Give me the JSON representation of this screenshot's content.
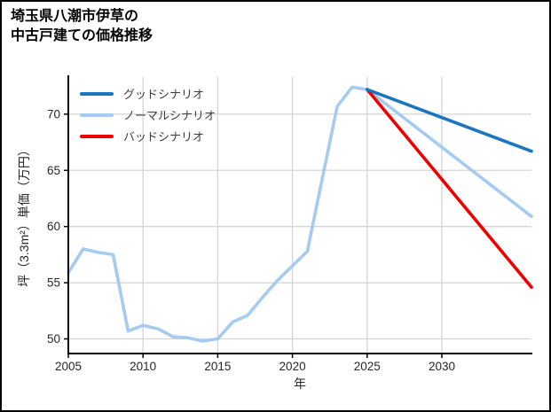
{
  "header": {
    "title_line1": "埼玉県八潮市伊草の",
    "title_line2": "中古戸建ての価格推移"
  },
  "chart_data": {
    "type": "line",
    "title": "埼玉県八潮市伊草の中古戸建ての価格推移",
    "xlabel": "年",
    "ylabel": "坪（3.3m²）単価（万円）",
    "xlim": [
      2005,
      2036
    ],
    "ylim": [
      48.7,
      73.3
    ],
    "xticks": [
      2005,
      2010,
      2015,
      2020,
      2025,
      2030
    ],
    "yticks": [
      50,
      55,
      60,
      65,
      70
    ],
    "grid": true,
    "grid_color": "#d4d4d4",
    "spine_color": "#000000",
    "tick_label_color": "#262626",
    "legend_position": "upper-left",
    "series": [
      {
        "name": "グッドシナリオ",
        "key": "good-scenario",
        "color": "#1a75c2",
        "x": [
          2025,
          2036
        ],
        "y": [
          72.2,
          66.7
        ]
      },
      {
        "name": "ノーマルシナリオ",
        "key": "normal-scenario-with-history",
        "color": "#a6cbf0",
        "x": [
          2005,
          2006,
          2007,
          2008,
          2009,
          2010,
          2011,
          2012,
          2013,
          2014,
          2015,
          2016,
          2017,
          2018,
          2019,
          2020,
          2021,
          2022,
          2023,
          2024,
          2025,
          2036
        ],
        "y": [
          55.9,
          58.0,
          57.7,
          57.5,
          50.7,
          51.2,
          50.9,
          50.2,
          50.1,
          49.8,
          50.0,
          51.5,
          52.1,
          53.7,
          55.2,
          56.5,
          57.8,
          64.3,
          70.7,
          72.4,
          72.2,
          60.9
        ]
      },
      {
        "name": "バッドシナリオ",
        "key": "bad-scenario",
        "color": "#ee0000",
        "x": [
          2025,
          2036
        ],
        "y": [
          72.2,
          54.6
        ]
      }
    ],
    "draw_order": [
      1,
      2,
      0
    ]
  }
}
